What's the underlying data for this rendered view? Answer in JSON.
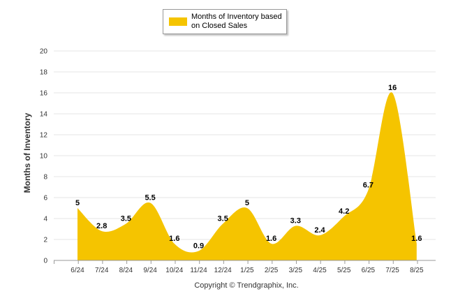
{
  "colors": {
    "series": "#f5c400",
    "grid": "#e6e6e6",
    "axis": "#999999"
  },
  "chart_data": {
    "type": "area",
    "categories": [
      "6/24",
      "7/24",
      "8/24",
      "9/24",
      "10/24",
      "11/24",
      "12/24",
      "1/25",
      "2/25",
      "3/25",
      "4/25",
      "5/25",
      "6/25",
      "7/25",
      "8/25"
    ],
    "series": [
      {
        "name": "Months of Inventory based on Closed Sales",
        "values": [
          5,
          2.8,
          3.5,
          5.5,
          1.6,
          0.9,
          3.5,
          5,
          1.6,
          3.3,
          2.4,
          4.2,
          6.7,
          16,
          1.6
        ]
      }
    ],
    "ylabel": "Months of Inventory",
    "ylim": [
      0,
      20
    ],
    "yticks": [
      0,
      2,
      4,
      6,
      8,
      10,
      12,
      14,
      16,
      18,
      20
    ],
    "grid": true,
    "legend": "top-center",
    "smooth": true
  },
  "legend": {
    "line1": "Months of Inventory based",
    "line2": "on Closed Sales"
  },
  "footer": {
    "copyright": "Copyright © Trendgraphix, Inc."
  }
}
